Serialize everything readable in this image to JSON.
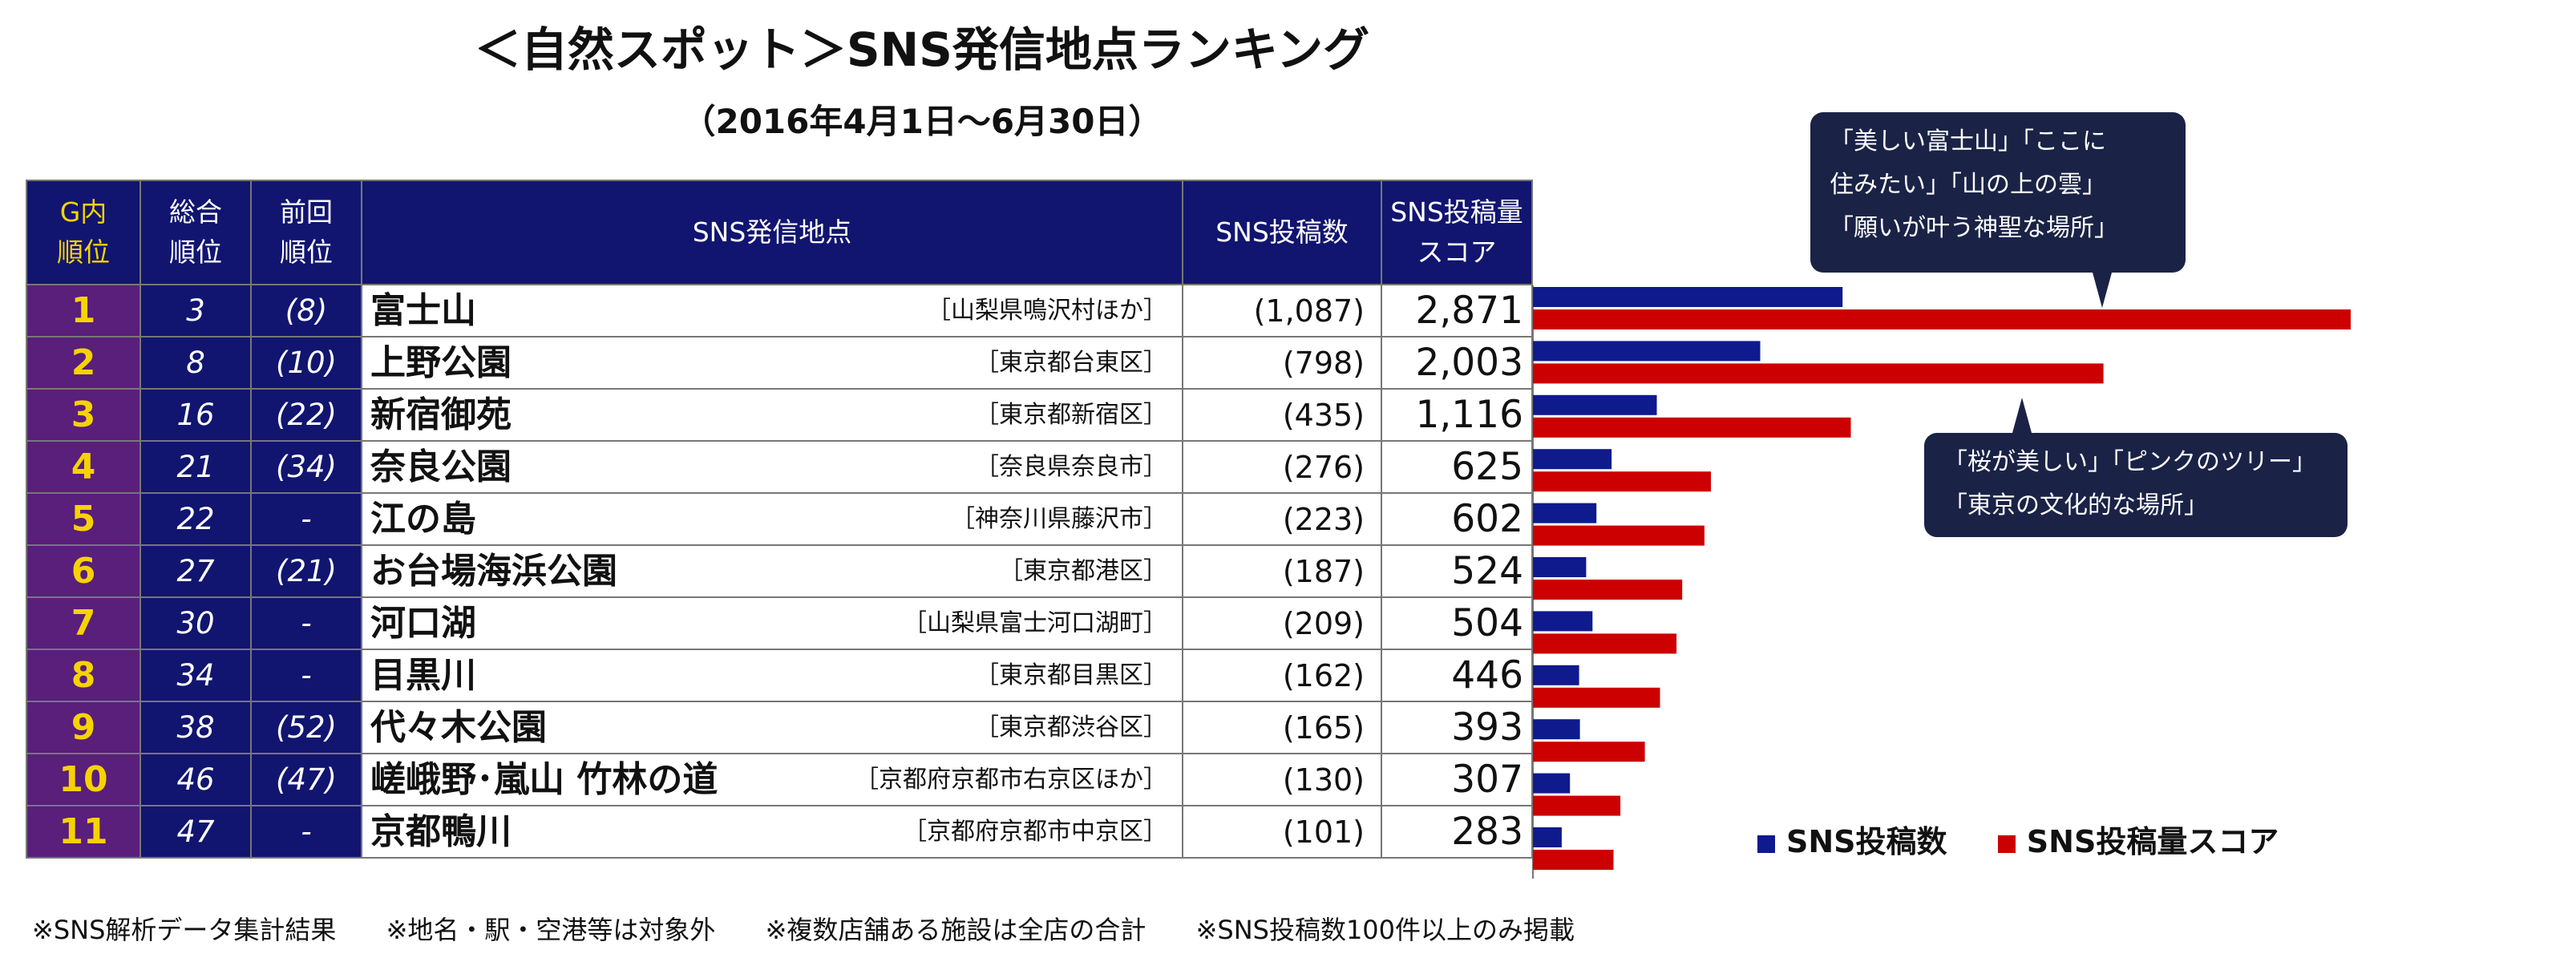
{
  "title": "＜自然スポット＞SNS発信地点ランキング",
  "subtitle": "（2016年4月1日～6月30日）",
  "table_headers": {
    "group_rank": "G内\n順位",
    "overall_rank": "総合\n順位",
    "prev_rank": "前回\n順位",
    "location": "SNS発信地点",
    "posts": "SNS投稿数",
    "score": "SNS投稿量\nスコア"
  },
  "rows": [
    {
      "g_rank": "1",
      "overall": "3",
      "prev": "(8)",
      "name": "富士山",
      "area": "［山梨県鳴沢村ほか］",
      "posts": "(1,087)",
      "score": "2,871"
    },
    {
      "g_rank": "2",
      "overall": "8",
      "prev": "(10)",
      "name": "上野公園",
      "area": "［東京都台東区］",
      "posts": "(798)",
      "score": "2,003"
    },
    {
      "g_rank": "3",
      "overall": "16",
      "prev": "(22)",
      "name": "新宿御苑",
      "area": "［東京都新宿区］",
      "posts": "(435)",
      "score": "1,116"
    },
    {
      "g_rank": "4",
      "overall": "21",
      "prev": "(34)",
      "name": "奈良公園",
      "area": "［奈良県奈良市］",
      "posts": "(276)",
      "score": "625"
    },
    {
      "g_rank": "5",
      "overall": "22",
      "prev": "-",
      "name": "江の島",
      "area": "［神奈川県藤沢市］",
      "posts": "(223)",
      "score": "602"
    },
    {
      "g_rank": "6",
      "overall": "27",
      "prev": "(21)",
      "name": "お台場海浜公園",
      "area": "［東京都港区］",
      "posts": "(187)",
      "score": "524"
    },
    {
      "g_rank": "7",
      "overall": "30",
      "prev": "-",
      "name": "河口湖",
      "area": "［山梨県富士河口湖町］",
      "posts": "(209)",
      "score": "504"
    },
    {
      "g_rank": "8",
      "overall": "34",
      "prev": "-",
      "name": "目黒川",
      "area": "［東京都目黒区］",
      "posts": "(162)",
      "score": "446"
    },
    {
      "g_rank": "9",
      "overall": "38",
      "prev": "(52)",
      "name": "代々木公園",
      "area": "［東京都渋谷区］",
      "posts": "(165)",
      "score": "393"
    },
    {
      "g_rank": "10",
      "overall": "46",
      "prev": "(47)",
      "name": "嵯峨野･嵐山 竹林の道",
      "area": "［京都府京都市右京区ほか］",
      "posts": "(130)",
      "score": "307"
    },
    {
      "g_rank": "11",
      "overall": "47",
      "prev": "-",
      "name": "京都鴨川",
      "area": "［京都府京都市中京区］",
      "posts": "(101)",
      "score": "283"
    }
  ],
  "callouts": {
    "fuji": [
      "「美しい富士山」「ここに",
      "住みたい」「山の上の雲」",
      "「願いが叶う神聖な場所」"
    ],
    "ueno": [
      "「桜が美しい」「ピンクのツリー」",
      "「東京の文化的な場所」"
    ]
  },
  "legend": {
    "posts": "SNS投稿数",
    "score": "SNS投稿量スコア"
  },
  "footnotes": [
    "※SNS解析データ集計結果",
    "※地名・駅・空港等は対象外",
    "※複数店舗ある施設は全店の合計",
    "※SNS投稿数100件以上のみ掲載"
  ],
  "colors": {
    "header_bg": "#111570",
    "rank_bg": "#5a1e7b",
    "rank_text": "#f6d300",
    "posts_bar": "#0f1a8c",
    "score_bar": "#cc0000",
    "callout_bg": "#1a2346"
  },
  "chart_data": {
    "type": "bar",
    "orientation": "horizontal",
    "categories": [
      "富士山",
      "上野公園",
      "新宿御苑",
      "奈良公園",
      "江の島",
      "お台場海浜公園",
      "河口湖",
      "目黒川",
      "代々木公園",
      "嵯峨野･嵐山 竹林の道",
      "京都鴨川"
    ],
    "series": [
      {
        "name": "SNS投稿数",
        "values": [
          1087,
          798,
          435,
          276,
          223,
          187,
          209,
          162,
          165,
          130,
          101
        ]
      },
      {
        "name": "SNS投稿量スコア",
        "values": [
          2871,
          2003,
          1116,
          625,
          602,
          524,
          504,
          446,
          393,
          307,
          283
        ]
      }
    ],
    "grid": false,
    "legend_position": "bottom-right"
  }
}
